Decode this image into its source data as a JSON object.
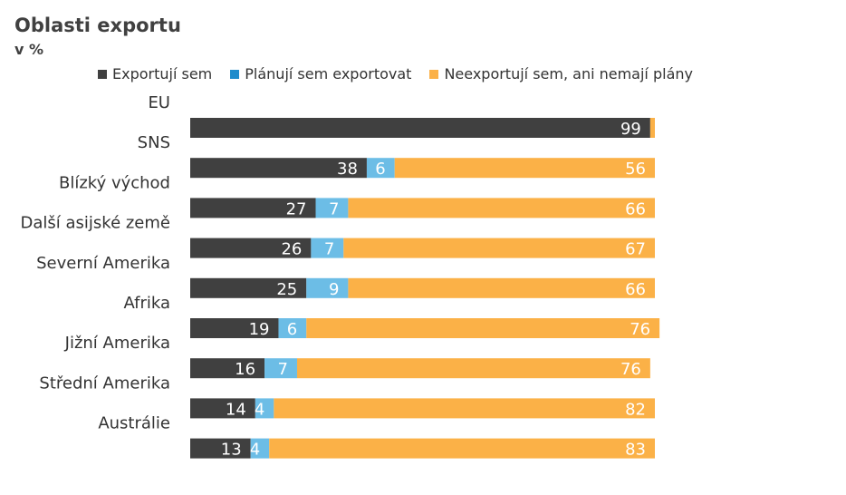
{
  "chart_data": {
    "type": "bar",
    "orientation": "horizontal",
    "stacked": true,
    "title": "Oblasti exportu",
    "subtitle": "v %",
    "categories": [
      "EU",
      "SNS",
      "Blízký východ",
      "Další asijské země",
      "Severní Amerika",
      "Afrika",
      "Jižní Amerika",
      "Střední Amerika",
      "Austrálie"
    ],
    "series": [
      {
        "name": "Exportují sem",
        "color": "#404040",
        "label_color": "#ffffff",
        "values": [
          99,
          38,
          27,
          26,
          25,
          19,
          16,
          14,
          13
        ]
      },
      {
        "name": "Plánují sem exportovat",
        "color": "#6cbde6",
        "label_color": "#ffffff",
        "values": [
          0,
          6,
          7,
          7,
          9,
          6,
          7,
          4,
          4
        ]
      },
      {
        "name": "Neexportují sem, ani nemají plány",
        "color": "#fbb147",
        "label_color": "#ffffff",
        "values": [
          1,
          56,
          66,
          67,
          66,
          76,
          76,
          82,
          83
        ]
      }
    ],
    "data_labels": [
      [
        "99",
        "",
        ""
      ],
      [
        "38",
        "6",
        "56"
      ],
      [
        "27",
        "7",
        "66"
      ],
      [
        "26",
        "7",
        "67"
      ],
      [
        "25",
        "9",
        "66"
      ],
      [
        "19",
        "6",
        "76"
      ],
      [
        "16",
        "7",
        "76"
      ],
      [
        "14",
        "4",
        "82"
      ],
      [
        "13",
        "4",
        "83"
      ]
    ],
    "legend": {
      "position": "top",
      "entries": [
        "Exportují sem",
        "Plánují sem exportovat",
        "Neexportují sem, ani nemají plány"
      ],
      "swatch_colors": [
        "#404040",
        "#1e8ccc",
        "#fbb147"
      ]
    },
    "xlim": [
      0,
      100
    ],
    "grid": false
  }
}
